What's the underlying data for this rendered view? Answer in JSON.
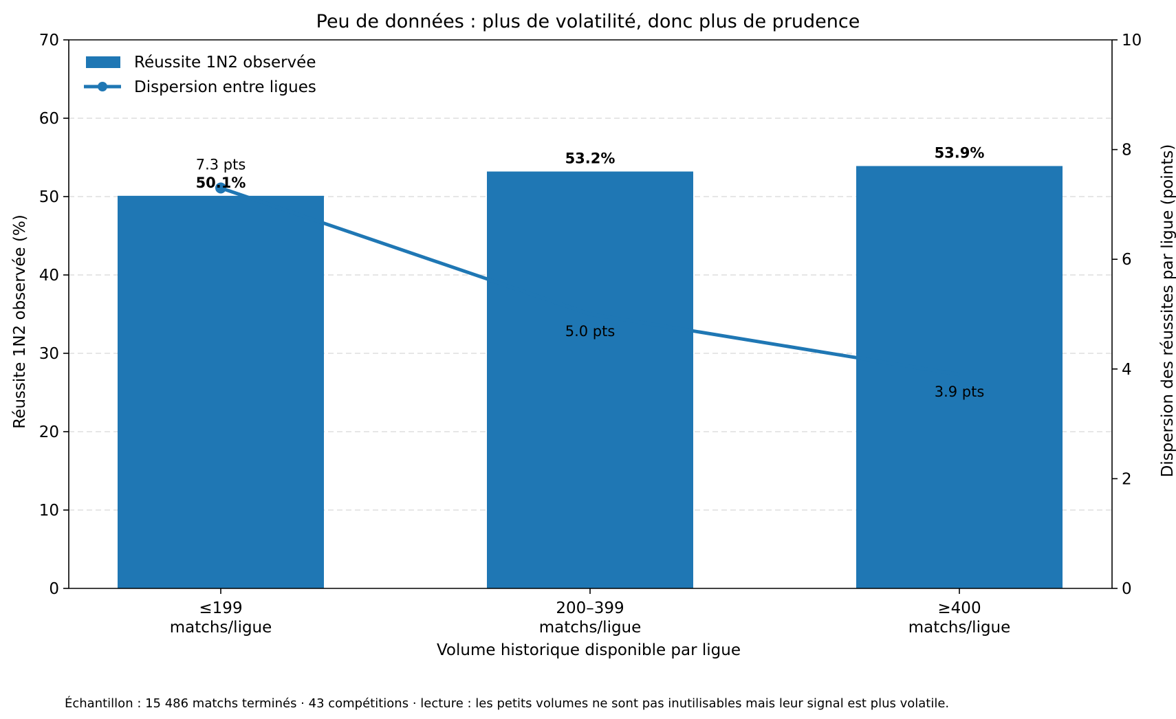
{
  "chart_data": {
    "type": "bar",
    "title": "Peu de données : plus de volatilité, donc plus de prudence",
    "xlabel": "Volume historique disponible par ligue",
    "ylabel": "Réussite 1N2 observée (%)",
    "y2label": "Dispersion des réussites par ligue (points)",
    "ylim": [
      0,
      70
    ],
    "y2lim": [
      0,
      10
    ],
    "yticks": [
      "0",
      "10",
      "20",
      "30",
      "40",
      "50",
      "60",
      "70"
    ],
    "y2ticks": [
      "0",
      "2",
      "4",
      "6",
      "8",
      "10"
    ],
    "grid": "horizontal dashed",
    "legend_position": "top-left",
    "categories": [
      [
        "≤199",
        "matchs/ligue"
      ],
      [
        "200–399",
        "matchs/ligue"
      ],
      [
        "≥400",
        "matchs/ligue"
      ]
    ],
    "series": [
      {
        "name": "Réussite 1N2 observée",
        "type": "bar",
        "axis": "left",
        "values": [
          50.1,
          53.2,
          53.9
        ],
        "labels": [
          "50.1%",
          "53.2%",
          "53.9%"
        ]
      },
      {
        "name": "Dispersion entre ligues",
        "type": "line",
        "axis": "right",
        "values": [
          7.3,
          5.0,
          3.9
        ],
        "labels": [
          "7.3 pts",
          "5.0 pts",
          "3.9 pts"
        ]
      }
    ],
    "colors": {
      "bar": "#1f77b4",
      "line": "#1f77b4",
      "grid": "#dddddd"
    },
    "footnote": "Échantillon : 15 486 matchs terminés · 43 compétitions · lecture : les petits volumes ne sont pas inutilisables  mais leur signal est plus volatile."
  }
}
